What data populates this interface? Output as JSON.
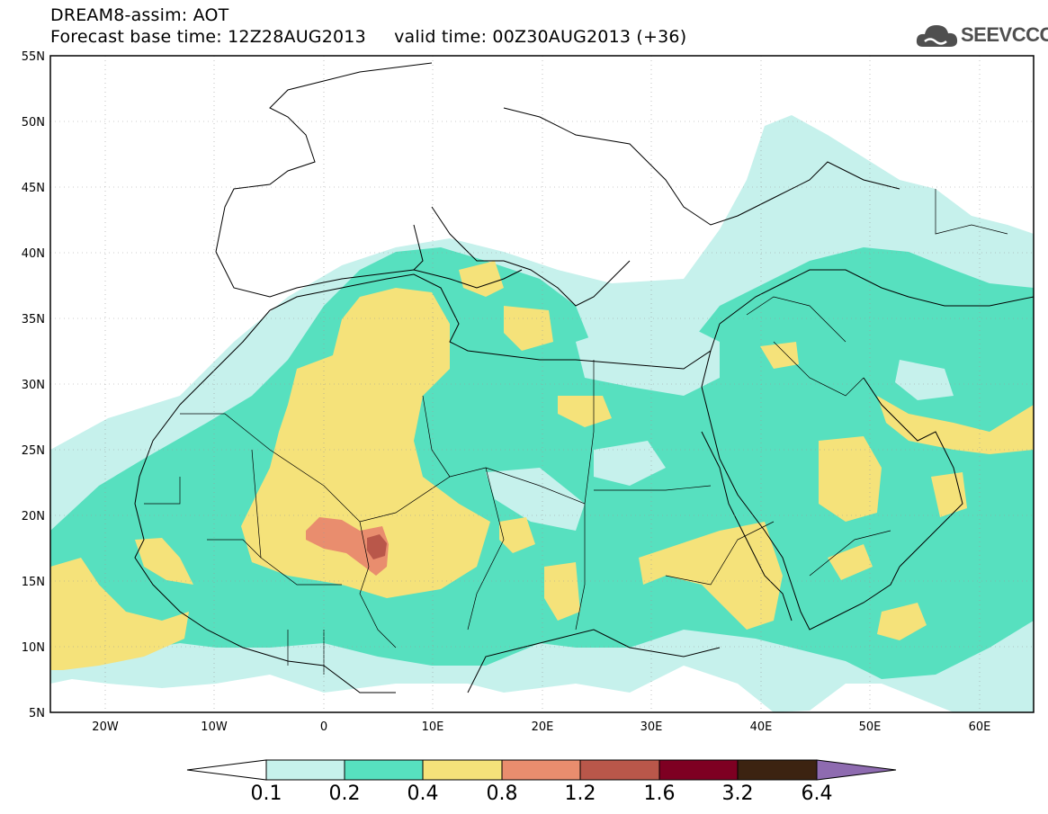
{
  "header": {
    "title": "DREAM8-assim: AOT",
    "base_time": "Forecast base time: 12Z28AUG2013",
    "valid_time": "valid time: 00Z30AUG2013 (+36)"
  },
  "logo": {
    "text": "SEEVCCC",
    "icon": "cloud-icon"
  },
  "map": {
    "lat_labels": [
      "55N",
      "50N",
      "45N",
      "40N",
      "35N",
      "30N",
      "25N",
      "20N",
      "15N",
      "10N",
      "5N"
    ],
    "lon_labels": [
      "20W",
      "10W",
      "0",
      "10E",
      "20E",
      "30E",
      "40E",
      "50E",
      "60E"
    ],
    "lon_range": [
      -25,
      65
    ],
    "lat_range": [
      5,
      55
    ]
  },
  "colorbar": {
    "levels": [
      "0.1",
      "0.2",
      "0.4",
      "0.8",
      "1.2",
      "1.6",
      "3.2",
      "6.4"
    ],
    "colors": [
      "#c6f1ec",
      "#57e0bf",
      "#f5e27a",
      "#e98d6e",
      "#b9574a",
      "#7e0022",
      "#3c2311",
      "#8e6bb0"
    ]
  },
  "colors": {
    "level1": "#c6f1ec",
    "level2": "#57e0bf",
    "level3": "#f5e27a",
    "level4": "#e98d6e",
    "level5": "#b9574a"
  }
}
